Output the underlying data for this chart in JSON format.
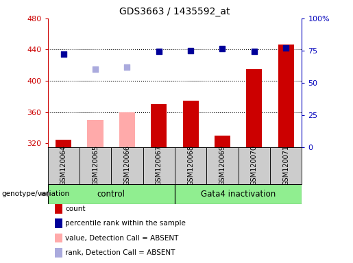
{
  "title": "GDS3663 / 1435592_at",
  "samples": [
    "GSM120064",
    "GSM120065",
    "GSM120066",
    "GSM120067",
    "GSM120068",
    "GSM120069",
    "GSM120070",
    "GSM120071"
  ],
  "ylim_left": [
    315,
    480
  ],
  "ylim_right": [
    0,
    100
  ],
  "yticks_left": [
    320,
    360,
    400,
    440,
    480
  ],
  "yticks_right": [
    0,
    25,
    50,
    75,
    100
  ],
  "yticklabels_right": [
    "0",
    "25",
    "50",
    "75",
    "100%"
  ],
  "bar_values": [
    325,
    null,
    null,
    370,
    375,
    330,
    415,
    447
  ],
  "bar_absent_values": [
    null,
    350,
    360,
    null,
    null,
    null,
    null,
    null
  ],
  "bar_color_present": "#cc0000",
  "bar_color_absent": "#ffaaaa",
  "bar_width": 0.5,
  "dot_present_values": [
    434,
    null,
    null,
    438,
    439,
    441,
    438,
    442
  ],
  "dot_absent_values": [
    null,
    415,
    418,
    null,
    null,
    null,
    null,
    null
  ],
  "dot_color_present": "#000099",
  "dot_color_absent": "#aaaadd",
  "dot_size": 40,
  "baseline": 315,
  "tick_color_left": "#cc0000",
  "tick_color_right": "#0000bb",
  "control_label": "control",
  "gata4_label": "Gata4 inactivation",
  "genotype_label": "genotype/variation",
  "group_color": "#90EE90",
  "sample_bg_color": "#cccccc",
  "legend_colors": [
    "#cc0000",
    "#000099",
    "#ffaaaa",
    "#aaaadd"
  ],
  "legend_labels": [
    "count",
    "percentile rank within the sample",
    "value, Detection Call = ABSENT",
    "rank, Detection Call = ABSENT"
  ]
}
